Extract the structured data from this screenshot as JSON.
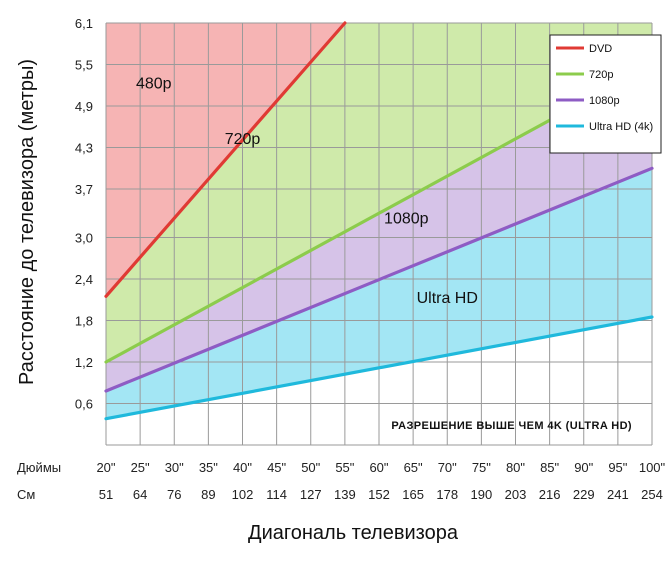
{
  "chart_data": {
    "type": "line",
    "xlabel": "Диагональ телевизора",
    "ylabel": "Расстояние до телевизора (метры)",
    "x_row_labels": {
      "inches": "Дюймы",
      "cm": "См"
    },
    "x_inches": [
      "20\"",
      "25\"",
      "30\"",
      "35\"",
      "40\"",
      "45\"",
      "50\"",
      "55\"",
      "60\"",
      "65\"",
      "70\"",
      "75\"",
      "80\"",
      "85\"",
      "90\"",
      "95\"",
      "100\""
    ],
    "x_cm": [
      "51",
      "64",
      "76",
      "89",
      "102",
      "114",
      "127",
      "139",
      "152",
      "165",
      "178",
      "190",
      "203",
      "216",
      "229",
      "241",
      "254"
    ],
    "x_values": [
      20,
      25,
      30,
      35,
      40,
      45,
      50,
      55,
      60,
      65,
      70,
      75,
      80,
      85,
      90,
      95,
      100
    ],
    "xlim": [
      20,
      100
    ],
    "y_ticks": [
      "0,6",
      "1,2",
      "1,8",
      "2,4",
      "3,0",
      "3,7",
      "4,3",
      "4,9",
      "5,5",
      "6,1"
    ],
    "y_tick_values": [
      0.6,
      1.2,
      1.8,
      2.4,
      3.0,
      3.7,
      4.3,
      4.9,
      5.5,
      6.1
    ],
    "ylim": [
      0,
      6.1
    ],
    "grid": true,
    "legend_position": "top-right",
    "series": [
      {
        "name": "DVD",
        "color": "#e03a34",
        "x": [
          20,
          55
        ],
        "y": [
          2.15,
          6.1
        ]
      },
      {
        "name": "720p",
        "color": "#8ccc4c",
        "x": [
          20,
          100
        ],
        "y": [
          1.2,
          5.5
        ]
      },
      {
        "name": "1080p",
        "color": "#8e5cc4",
        "x": [
          20,
          100
        ],
        "y": [
          0.78,
          4.0
        ]
      },
      {
        "name": "Ultra HD (4k)",
        "color": "#1fb9dc",
        "x": [
          20,
          100
        ],
        "y": [
          0.38,
          1.85
        ]
      }
    ],
    "region_labels": [
      {
        "text": "480p",
        "x": 27,
        "y": 5.15,
        "fill": "#f6b4b4"
      },
      {
        "text": "720p",
        "x": 40,
        "y": 4.35,
        "fill": "#cfeaaa"
      },
      {
        "text": "1080p",
        "x": 64,
        "y": 3.2,
        "fill": "#d6c3e8"
      },
      {
        "text": "Ultra HD",
        "x": 70,
        "y": 2.05,
        "fill": "#a3e6f4"
      }
    ],
    "annotation": "РАЗРЕШЕНИЕ ВЫШЕ ЧЕМ 4K (ULTRA HD)"
  }
}
